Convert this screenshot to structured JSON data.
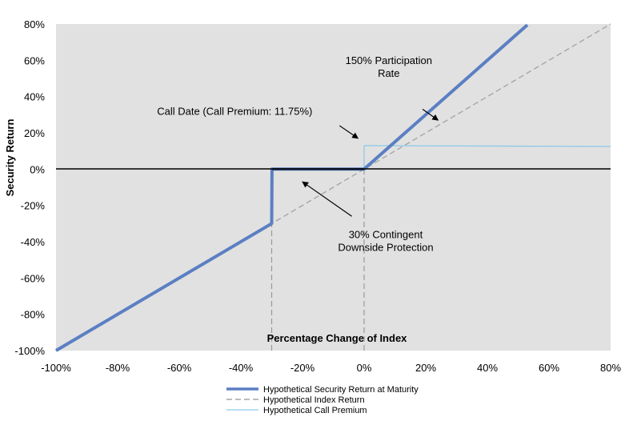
{
  "chart_data": {
    "type": "line",
    "xlabel": "Percentage Change of Index",
    "ylabel": "Security Return",
    "xlim": [
      -100,
      80
    ],
    "ylim": [
      -100,
      80
    ],
    "x_ticks": [
      "-100%",
      "-80%",
      "-60%",
      "-40%",
      "-20%",
      "0%",
      "20%",
      "40%",
      "60%",
      "80%"
    ],
    "y_ticks": [
      "80%",
      "60%",
      "40%",
      "20%",
      "0%",
      "-20%",
      "-40%",
      "-60%",
      "-80%",
      "-100%"
    ],
    "grid": false,
    "legend_position": "bottom",
    "series": [
      {
        "name": "Hypothetical Security Return at Maturity",
        "color": "#5b7fc3",
        "style": "solid-thick",
        "points": [
          [
            -100,
            -100
          ],
          [
            -30,
            -30
          ],
          [
            -29.9,
            0
          ],
          [
            0,
            0
          ],
          [
            53,
            79.5
          ]
        ]
      },
      {
        "name": "Hypothetical Index Return",
        "color": "#a6a6a6",
        "style": "dashed",
        "points": [
          [
            -100,
            -100
          ],
          [
            80,
            80
          ]
        ]
      },
      {
        "name": "Hypothetical Call Premium",
        "color": "#8ec9e6",
        "style": "solid-thin",
        "points": [
          [
            0,
            0
          ],
          [
            0,
            13
          ],
          [
            80,
            12.5
          ]
        ]
      }
    ],
    "reference_lines": [
      {
        "x": -30,
        "from_y": -100,
        "to_y": -30,
        "style": "dashed"
      },
      {
        "x": 0,
        "from_y": -100,
        "to_y": 0,
        "style": "dashed"
      }
    ],
    "annotations": [
      {
        "lines": [
          "150% Participation",
          "Rate"
        ],
        "arrow_from": [
          19,
          33
        ],
        "arrow_to": [
          24,
          27
        ]
      },
      {
        "lines": [
          "Call Date (Call Premium:  11.75%)"
        ],
        "arrow_from": [
          -8,
          24
        ],
        "arrow_to": [
          -2,
          17
        ]
      },
      {
        "lines": [
          "30% Contingent",
          "Downside Protection"
        ],
        "arrow_from": [
          -4,
          -26
        ],
        "arrow_to": [
          -20,
          -7
        ]
      }
    ]
  }
}
